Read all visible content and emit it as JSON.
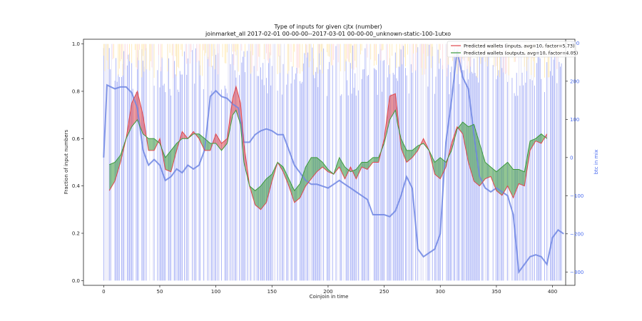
{
  "chart_data": {
    "type": "line",
    "title": "Type of inputs for given cjtx (number)",
    "subtitle": "joinmarket_all 2017-02-01 00-00-00--2017-03-01 00-00-00_unknown-static-100-1utxo",
    "xlabel": "Coinjoin in time",
    "ylabel": "Fraction of input numbers",
    "y2label": "btc in mix",
    "xlim": [
      -18,
      420
    ],
    "ylim": [
      -0.02,
      1.02
    ],
    "y2lim": [
      -335,
      310
    ],
    "x_ticks": [
      0,
      50,
      100,
      150,
      200,
      250,
      300,
      350,
      400
    ],
    "y_ticks": [
      0.0,
      0.2,
      0.4,
      0.6,
      0.8,
      1.0
    ],
    "y_tick_labels": [
      "0.0",
      "0.2",
      "0.4",
      "0.6",
      "0.8",
      "1.0"
    ],
    "y2_ticks": [
      -300,
      -200,
      -100,
      0,
      100,
      200,
      300
    ],
    "y2_tick_labels": [
      "−300",
      "−200",
      "−100",
      "0",
      "100",
      "200",
      "300"
    ],
    "legend_position": "top-right",
    "colors": {
      "inputs": "#e0474c",
      "outputs": "#3c9a3c",
      "btc_line": "#6f86e3",
      "bars_blue": "#9fa8f5",
      "bars_orange": "#ffe6a8",
      "bars_pink": "#ffd3d8",
      "bars_lavender": "#dcdcf5"
    },
    "series": [
      {
        "name": "Predicted wallets (inputs, avg=10, factor=5.73)",
        "axis": "left",
        "points": [
          [
            5,
            0.38
          ],
          [
            10,
            0.42
          ],
          [
            15,
            0.5
          ],
          [
            20,
            0.6
          ],
          [
            25,
            0.75
          ],
          [
            30,
            0.8
          ],
          [
            35,
            0.7
          ],
          [
            40,
            0.55
          ],
          [
            45,
            0.55
          ],
          [
            50,
            0.6
          ],
          [
            55,
            0.47
          ],
          [
            60,
            0.46
          ],
          [
            65,
            0.55
          ],
          [
            70,
            0.63
          ],
          [
            75,
            0.6
          ],
          [
            80,
            0.63
          ],
          [
            85,
            0.6
          ],
          [
            90,
            0.55
          ],
          [
            95,
            0.55
          ],
          [
            100,
            0.62
          ],
          [
            105,
            0.58
          ],
          [
            110,
            0.6
          ],
          [
            115,
            0.77
          ],
          [
            118,
            0.82
          ],
          [
            122,
            0.75
          ],
          [
            125,
            0.58
          ],
          [
            130,
            0.4
          ],
          [
            135,
            0.32
          ],
          [
            140,
            0.3
          ],
          [
            145,
            0.33
          ],
          [
            150,
            0.42
          ],
          [
            155,
            0.5
          ],
          [
            160,
            0.46
          ],
          [
            165,
            0.4
          ],
          [
            170,
            0.33
          ],
          [
            175,
            0.35
          ],
          [
            180,
            0.4
          ],
          [
            185,
            0.43
          ],
          [
            190,
            0.46
          ],
          [
            195,
            0.48
          ],
          [
            200,
            0.46
          ],
          [
            205,
            0.45
          ],
          [
            210,
            0.48
          ],
          [
            215,
            0.43
          ],
          [
            220,
            0.48
          ],
          [
            225,
            0.43
          ],
          [
            230,
            0.48
          ],
          [
            235,
            0.47
          ],
          [
            240,
            0.5
          ],
          [
            245,
            0.5
          ],
          [
            250,
            0.6
          ],
          [
            255,
            0.78
          ],
          [
            260,
            0.79
          ],
          [
            262,
            0.7
          ],
          [
            265,
            0.56
          ],
          [
            270,
            0.5
          ],
          [
            275,
            0.52
          ],
          [
            280,
            0.55
          ],
          [
            285,
            0.6
          ],
          [
            290,
            0.55
          ],
          [
            295,
            0.45
          ],
          [
            300,
            0.43
          ],
          [
            305,
            0.48
          ],
          [
            310,
            0.58
          ],
          [
            315,
            0.65
          ],
          [
            320,
            0.62
          ],
          [
            325,
            0.5
          ],
          [
            330,
            0.42
          ],
          [
            335,
            0.4
          ],
          [
            340,
            0.43
          ],
          [
            345,
            0.44
          ],
          [
            350,
            0.38
          ],
          [
            355,
            0.36
          ],
          [
            360,
            0.4
          ],
          [
            365,
            0.35
          ],
          [
            370,
            0.41
          ],
          [
            375,
            0.4
          ],
          [
            380,
            0.55
          ],
          [
            385,
            0.59
          ],
          [
            390,
            0.58
          ],
          [
            395,
            0.62
          ]
        ]
      },
      {
        "name": "Predicted wallets (outputs, avg=10, factor=4.05)",
        "axis": "left",
        "points": [
          [
            5,
            0.49
          ],
          [
            10,
            0.5
          ],
          [
            15,
            0.53
          ],
          [
            20,
            0.6
          ],
          [
            25,
            0.65
          ],
          [
            30,
            0.68
          ],
          [
            35,
            0.62
          ],
          [
            40,
            0.6
          ],
          [
            45,
            0.6
          ],
          [
            50,
            0.58
          ],
          [
            55,
            0.52
          ],
          [
            60,
            0.55
          ],
          [
            65,
            0.58
          ],
          [
            70,
            0.6
          ],
          [
            75,
            0.6
          ],
          [
            80,
            0.62
          ],
          [
            85,
            0.62
          ],
          [
            90,
            0.6
          ],
          [
            95,
            0.58
          ],
          [
            100,
            0.58
          ],
          [
            105,
            0.55
          ],
          [
            110,
            0.58
          ],
          [
            115,
            0.7
          ],
          [
            118,
            0.72
          ],
          [
            122,
            0.66
          ],
          [
            125,
            0.5
          ],
          [
            130,
            0.4
          ],
          [
            135,
            0.38
          ],
          [
            140,
            0.4
          ],
          [
            145,
            0.43
          ],
          [
            150,
            0.45
          ],
          [
            155,
            0.5
          ],
          [
            160,
            0.48
          ],
          [
            165,
            0.43
          ],
          [
            170,
            0.38
          ],
          [
            175,
            0.41
          ],
          [
            180,
            0.48
          ],
          [
            185,
            0.52
          ],
          [
            190,
            0.52
          ],
          [
            195,
            0.5
          ],
          [
            200,
            0.47
          ],
          [
            205,
            0.45
          ],
          [
            210,
            0.52
          ],
          [
            215,
            0.48
          ],
          [
            220,
            0.46
          ],
          [
            225,
            0.47
          ],
          [
            230,
            0.5
          ],
          [
            235,
            0.5
          ],
          [
            240,
            0.52
          ],
          [
            245,
            0.52
          ],
          [
            250,
            0.58
          ],
          [
            255,
            0.68
          ],
          [
            260,
            0.72
          ],
          [
            262,
            0.66
          ],
          [
            265,
            0.6
          ],
          [
            270,
            0.55
          ],
          [
            275,
            0.55
          ],
          [
            280,
            0.57
          ],
          [
            285,
            0.58
          ],
          [
            290,
            0.55
          ],
          [
            295,
            0.5
          ],
          [
            300,
            0.52
          ],
          [
            305,
            0.5
          ],
          [
            310,
            0.55
          ],
          [
            315,
            0.64
          ],
          [
            320,
            0.67
          ],
          [
            325,
            0.65
          ],
          [
            330,
            0.66
          ],
          [
            335,
            0.58
          ],
          [
            340,
            0.5
          ],
          [
            345,
            0.48
          ],
          [
            350,
            0.46
          ],
          [
            355,
            0.48
          ],
          [
            360,
            0.5
          ],
          [
            365,
            0.47
          ],
          [
            370,
            0.47
          ],
          [
            375,
            0.46
          ],
          [
            380,
            0.59
          ],
          [
            385,
            0.6
          ],
          [
            390,
            0.62
          ],
          [
            395,
            0.6
          ]
        ]
      },
      {
        "name": "btc in mix",
        "axis": "right",
        "points": [
          [
            0,
            0
          ],
          [
            3,
            190
          ],
          [
            10,
            180
          ],
          [
            15,
            185
          ],
          [
            20,
            185
          ],
          [
            25,
            170
          ],
          [
            30,
            130
          ],
          [
            35,
            20
          ],
          [
            40,
            -20
          ],
          [
            45,
            -5
          ],
          [
            50,
            -20
          ],
          [
            55,
            -60
          ],
          [
            60,
            -50
          ],
          [
            65,
            -30
          ],
          [
            70,
            -40
          ],
          [
            75,
            -20
          ],
          [
            80,
            -30
          ],
          [
            85,
            -20
          ],
          [
            90,
            20
          ],
          [
            95,
            160
          ],
          [
            100,
            175
          ],
          [
            105,
            160
          ],
          [
            110,
            155
          ],
          [
            115,
            140
          ],
          [
            120,
            130
          ],
          [
            125,
            40
          ],
          [
            130,
            40
          ],
          [
            135,
            60
          ],
          [
            140,
            70
          ],
          [
            145,
            75
          ],
          [
            150,
            70
          ],
          [
            155,
            60
          ],
          [
            160,
            60
          ],
          [
            165,
            20
          ],
          [
            170,
            -20
          ],
          [
            175,
            -40
          ],
          [
            180,
            -60
          ],
          [
            185,
            -70
          ],
          [
            190,
            -70
          ],
          [
            195,
            -75
          ],
          [
            200,
            -80
          ],
          [
            205,
            -70
          ],
          [
            210,
            -60
          ],
          [
            215,
            -70
          ],
          [
            220,
            -80
          ],
          [
            225,
            -90
          ],
          [
            230,
            -100
          ],
          [
            235,
            -110
          ],
          [
            240,
            -150
          ],
          [
            245,
            -150
          ],
          [
            250,
            -150
          ],
          [
            255,
            -155
          ],
          [
            260,
            -140
          ],
          [
            265,
            -100
          ],
          [
            270,
            -50
          ],
          [
            275,
            -80
          ],
          [
            280,
            -240
          ],
          [
            285,
            -260
          ],
          [
            290,
            -250
          ],
          [
            295,
            -240
          ],
          [
            300,
            -200
          ],
          [
            305,
            40
          ],
          [
            310,
            150
          ],
          [
            315,
            280
          ],
          [
            320,
            210
          ],
          [
            325,
            180
          ],
          [
            330,
            60
          ],
          [
            335,
            -50
          ],
          [
            340,
            -80
          ],
          [
            345,
            -90
          ],
          [
            350,
            -80
          ],
          [
            355,
            -90
          ],
          [
            360,
            -100
          ],
          [
            365,
            -150
          ],
          [
            370,
            -300
          ],
          [
            375,
            -280
          ],
          [
            380,
            -260
          ],
          [
            385,
            -255
          ],
          [
            390,
            -260
          ],
          [
            395,
            -280
          ],
          [
            400,
            -210
          ],
          [
            405,
            -190
          ],
          [
            410,
            -200
          ]
        ]
      }
    ]
  }
}
